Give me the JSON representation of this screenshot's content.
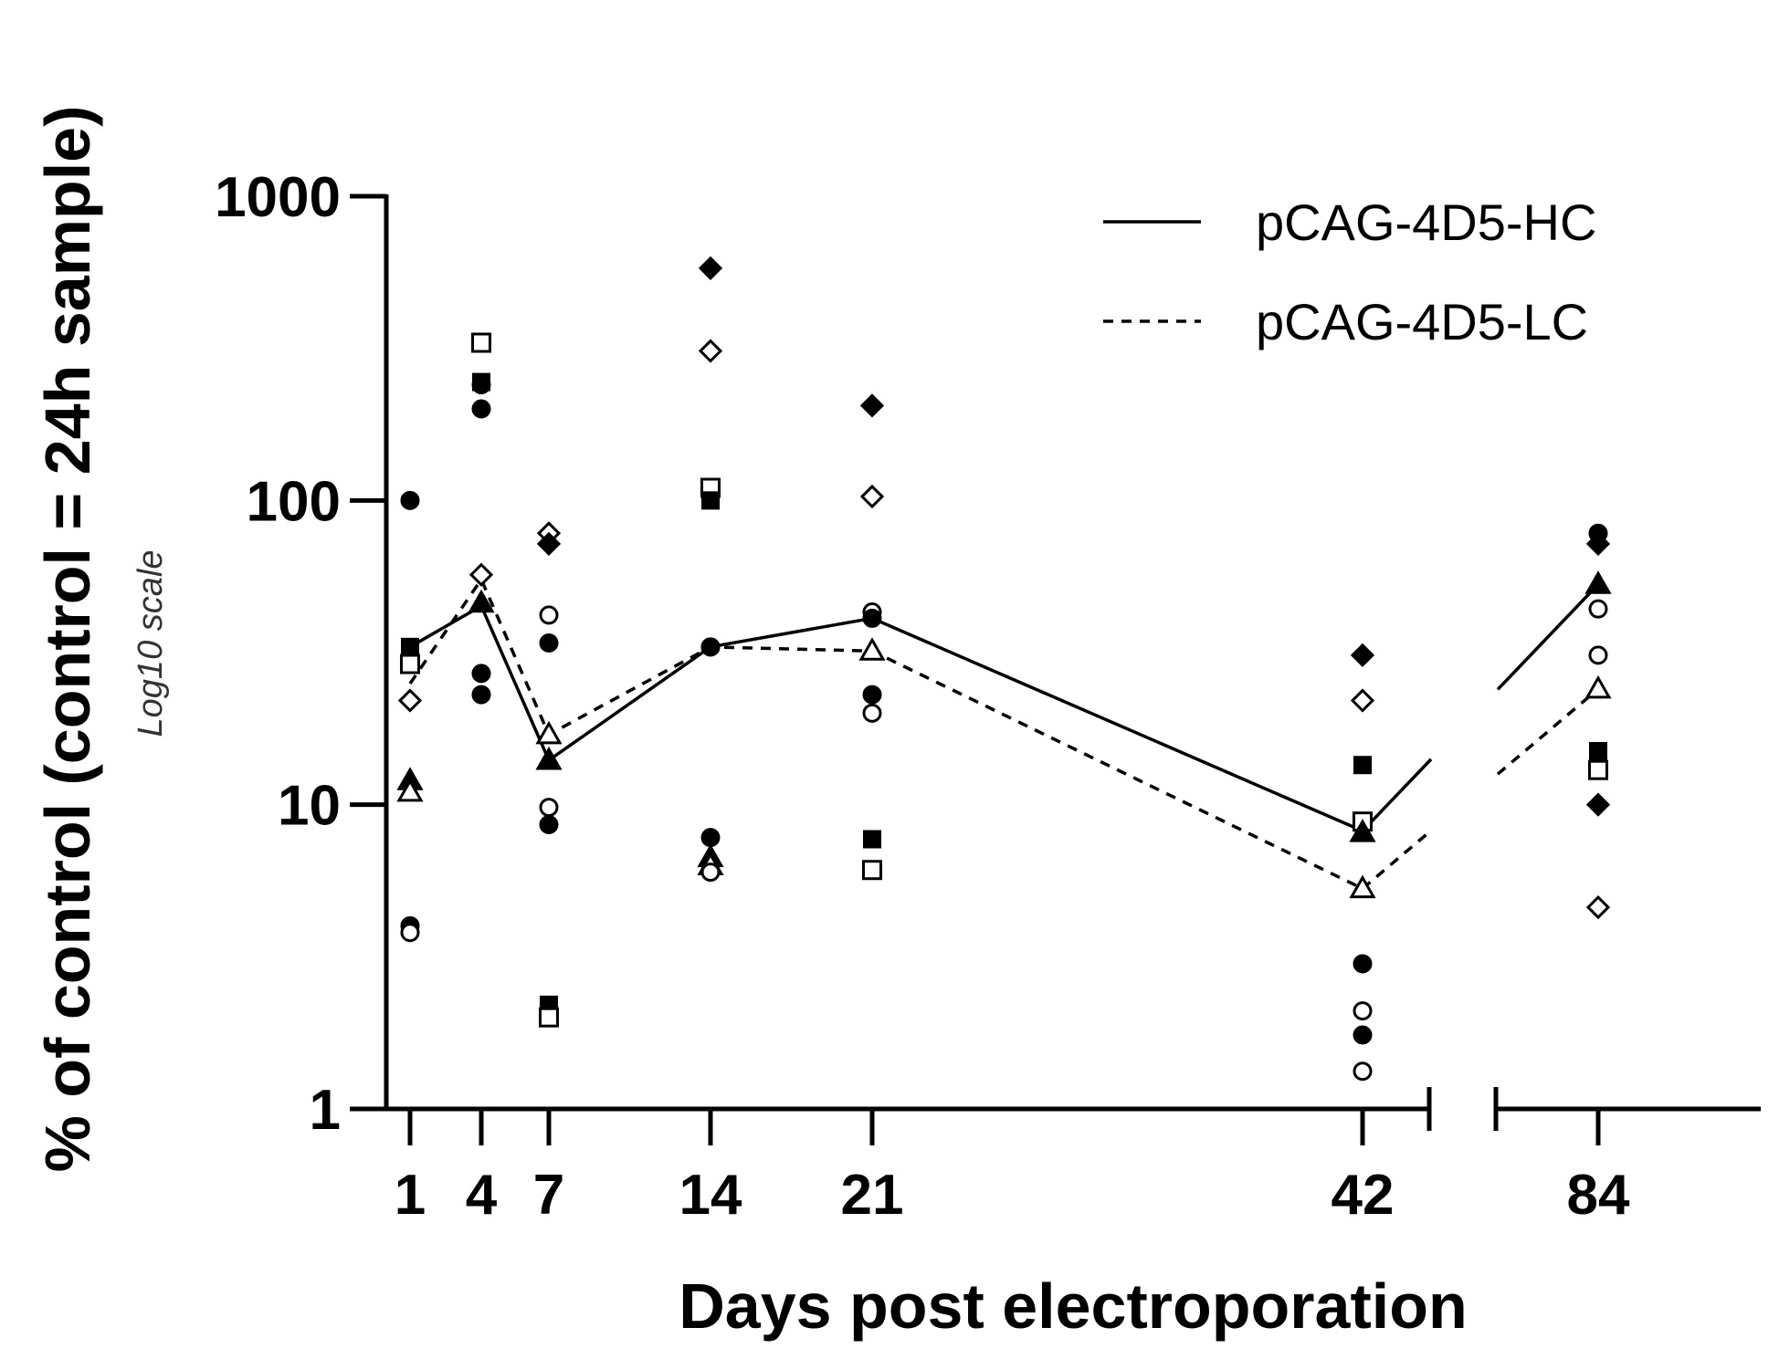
{
  "chart_data": {
    "type": "scatter",
    "ylabel": "% of control (control = 24h sample)",
    "ylabel_sub": "Log10 scale",
    "xlabel": "Days post electroporation",
    "y_scale": "log10",
    "ylim": [
      1,
      1000
    ],
    "yticks": [
      {
        "value": 1,
        "label": "1"
      },
      {
        "value": 10,
        "label": "10"
      },
      {
        "value": 100,
        "label": "100"
      },
      {
        "value": 1000,
        "label": "1000"
      }
    ],
    "xticks": [
      {
        "value": 1,
        "label": "1"
      },
      {
        "value": 4,
        "label": "4"
      },
      {
        "value": 7,
        "label": "7"
      },
      {
        "value": 14,
        "label": "14"
      },
      {
        "value": 21,
        "label": "21"
      },
      {
        "value": 42,
        "label": "42"
      },
      {
        "value": 84,
        "label": "84"
      }
    ],
    "x_axis_break": {
      "after": 42,
      "before": 84
    },
    "legend": {
      "position": "top-right"
    },
    "series": [
      {
        "name": "pCAG-4D5-HC",
        "style": "solid",
        "x": [
          1,
          4,
          7,
          14,
          21,
          42,
          84
        ],
        "y": [
          33,
          45,
          14,
          33,
          41,
          8.2,
          53
        ]
      },
      {
        "name": "pCAG-4D5-LC",
        "style": "dashed",
        "x": [
          1,
          4,
          7,
          14,
          21,
          42,
          84
        ],
        "y": [
          25,
          55,
          17,
          33,
          32,
          5.3,
          24
        ]
      }
    ],
    "points": [
      {
        "x": 1,
        "y": 100,
        "marker": "circle-filled"
      },
      {
        "x": 1,
        "y": 33,
        "marker": "square-filled"
      },
      {
        "x": 1,
        "y": 29,
        "marker": "square-open"
      },
      {
        "x": 1,
        "y": 22,
        "marker": "diamond-open"
      },
      {
        "x": 1,
        "y": 12,
        "marker": "triangle-filled"
      },
      {
        "x": 1,
        "y": 11,
        "marker": "triangle-open"
      },
      {
        "x": 1,
        "y": 4.0,
        "marker": "circle-filled"
      },
      {
        "x": 1,
        "y": 3.8,
        "marker": "circle-open"
      },
      {
        "x": 4,
        "y": 330,
        "marker": "square-open"
      },
      {
        "x": 4,
        "y": 245,
        "marker": "square-filled"
      },
      {
        "x": 4,
        "y": 240,
        "marker": "circle-filled"
      },
      {
        "x": 4,
        "y": 200,
        "marker": "circle-filled"
      },
      {
        "x": 4,
        "y": 57,
        "marker": "diamond-open"
      },
      {
        "x": 4,
        "y": 46,
        "marker": "triangle-filled"
      },
      {
        "x": 4,
        "y": 27,
        "marker": "circle-filled"
      },
      {
        "x": 4,
        "y": 23,
        "marker": "circle-filled"
      },
      {
        "x": 7,
        "y": 78,
        "marker": "diamond-open"
      },
      {
        "x": 7,
        "y": 72,
        "marker": "diamond-filled"
      },
      {
        "x": 7,
        "y": 42,
        "marker": "circle-open"
      },
      {
        "x": 7,
        "y": 34,
        "marker": "circle-filled"
      },
      {
        "x": 7,
        "y": 17,
        "marker": "triangle-open"
      },
      {
        "x": 7,
        "y": 14,
        "marker": "triangle-filled"
      },
      {
        "x": 7,
        "y": 9.8,
        "marker": "circle-open"
      },
      {
        "x": 7,
        "y": 8.6,
        "marker": "circle-filled"
      },
      {
        "x": 7,
        "y": 2.2,
        "marker": "square-filled"
      },
      {
        "x": 7,
        "y": 2.0,
        "marker": "square-open"
      },
      {
        "x": 14,
        "y": 580,
        "marker": "diamond-filled"
      },
      {
        "x": 14,
        "y": 310,
        "marker": "diamond-open"
      },
      {
        "x": 14,
        "y": 110,
        "marker": "square-open"
      },
      {
        "x": 14,
        "y": 100,
        "marker": "square-filled"
      },
      {
        "x": 14,
        "y": 33,
        "marker": "circle-open"
      },
      {
        "x": 14,
        "y": 33,
        "marker": "circle-filled"
      },
      {
        "x": 14,
        "y": 7.8,
        "marker": "circle-filled"
      },
      {
        "x": 14,
        "y": 6.7,
        "marker": "triangle-filled"
      },
      {
        "x": 14,
        "y": 6.3,
        "marker": "triangle-open"
      },
      {
        "x": 14,
        "y": 6.0,
        "marker": "circle-open"
      },
      {
        "x": 21,
        "y": 205,
        "marker": "diamond-filled"
      },
      {
        "x": 21,
        "y": 103,
        "marker": "diamond-open"
      },
      {
        "x": 21,
        "y": 43,
        "marker": "circle-open"
      },
      {
        "x": 21,
        "y": 41,
        "marker": "circle-filled"
      },
      {
        "x": 21,
        "y": 32,
        "marker": "triangle-open"
      },
      {
        "x": 21,
        "y": 23,
        "marker": "circle-filled"
      },
      {
        "x": 21,
        "y": 20,
        "marker": "circle-open"
      },
      {
        "x": 21,
        "y": 7.7,
        "marker": "square-filled"
      },
      {
        "x": 21,
        "y": 6.1,
        "marker": "square-open"
      },
      {
        "x": 42,
        "y": 31,
        "marker": "diamond-filled"
      },
      {
        "x": 42,
        "y": 22,
        "marker": "diamond-open"
      },
      {
        "x": 42,
        "y": 13.5,
        "marker": "square-filled"
      },
      {
        "x": 42,
        "y": 8.8,
        "marker": "square-open"
      },
      {
        "x": 42,
        "y": 8.1,
        "marker": "triangle-filled"
      },
      {
        "x": 42,
        "y": 5.3,
        "marker": "triangle-open"
      },
      {
        "x": 42,
        "y": 3.0,
        "marker": "circle-filled"
      },
      {
        "x": 42,
        "y": 2.1,
        "marker": "circle-open"
      },
      {
        "x": 42,
        "y": 1.75,
        "marker": "circle-filled"
      },
      {
        "x": 42,
        "y": 1.33,
        "marker": "circle-open"
      },
      {
        "x": 84,
        "y": 78,
        "marker": "circle-filled"
      },
      {
        "x": 84,
        "y": 72,
        "marker": "diamond-filled"
      },
      {
        "x": 84,
        "y": 53,
        "marker": "triangle-filled"
      },
      {
        "x": 84,
        "y": 44,
        "marker": "circle-open"
      },
      {
        "x": 84,
        "y": 31,
        "marker": "circle-open"
      },
      {
        "x": 84,
        "y": 24,
        "marker": "triangle-open"
      },
      {
        "x": 84,
        "y": 15,
        "marker": "square-filled"
      },
      {
        "x": 84,
        "y": 13,
        "marker": "square-open"
      },
      {
        "x": 84,
        "y": 10,
        "marker": "diamond-filled"
      },
      {
        "x": 84,
        "y": 4.6,
        "marker": "diamond-open"
      }
    ]
  }
}
